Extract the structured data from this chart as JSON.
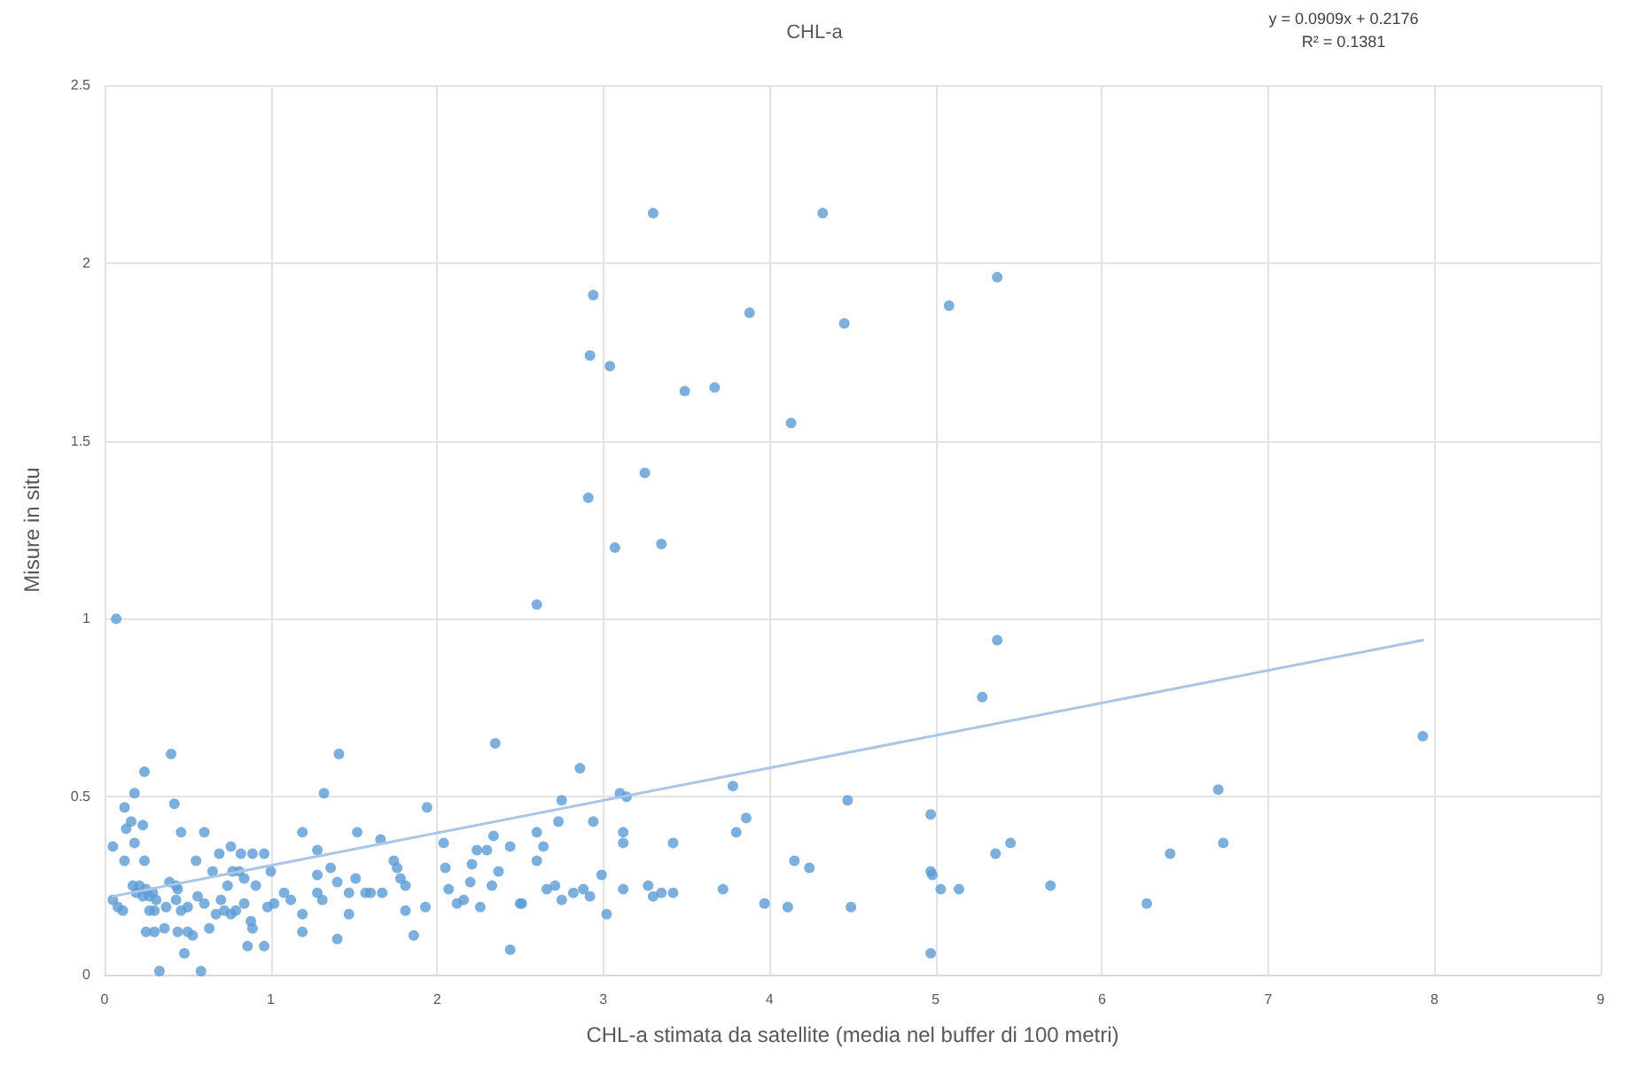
{
  "chart_data": {
    "type": "scatter",
    "title": "CHL-a",
    "xlabel": "CHL-a stimata da satellite (media nel buffer di 100 metri)",
    "ylabel": "Misure in situ",
    "annotations": [
      "y = 0.0909x + 0.2176",
      "R² = 0.1381"
    ],
    "series": [
      {
        "color": "#5b9bd5",
        "x": [
          3.3,
          2.94,
          2.92,
          3.04,
          3.49,
          3.67,
          3.88,
          4.13,
          3.25,
          2.91,
          4.32,
          4.45,
          5.08,
          5.37,
          3.07,
          3.35,
          2.6,
          0.07,
          5.37,
          5.28,
          2.86,
          3.78,
          2.75,
          4.47,
          3.1,
          3.14,
          4.97,
          2.73,
          2.94,
          3.86,
          3.8,
          2.6,
          2.64,
          3.12,
          3.12,
          3.42,
          2.6,
          4.15,
          4.24,
          5.36,
          5.45,
          2.99,
          4.97,
          4.98,
          2.66,
          2.71,
          2.75,
          2.82,
          2.88,
          2.92,
          3.12,
          3.27,
          3.3,
          3.35,
          3.42,
          3.72,
          3.02,
          2.51,
          3.97,
          4.11,
          4.49,
          5.03,
          5.14,
          5.69,
          4.97,
          7.93,
          6.7,
          6.73,
          6.41,
          6.27,
          0.4,
          1.41,
          2.35,
          0.24,
          1.32,
          0.18,
          1.94,
          0.42,
          0.12,
          0.16,
          0.13,
          0.23,
          0.05,
          0.12,
          0.18,
          0.24,
          0.46,
          0.6,
          1.19,
          1.52,
          1.66,
          2.04,
          2.05,
          2.07,
          1.28,
          0.55,
          0.69,
          0.76,
          0.82,
          0.89,
          0.96,
          0.65,
          0.77,
          1.0,
          0.91,
          1.08,
          1.12,
          1.19,
          1.28,
          1.28,
          1.31,
          1.36,
          1.4,
          1.47,
          1.51,
          1.47,
          1.4,
          1.57,
          1.6,
          1.67,
          1.74,
          1.76,
          1.78,
          1.81,
          1.81,
          1.93,
          1.86,
          2.12,
          2.16,
          2.2,
          2.21,
          2.24,
          2.3,
          2.34,
          2.33,
          2.37,
          2.44,
          2.26,
          2.44,
          2.5,
          0.05,
          0.08,
          0.11,
          0.17,
          0.19,
          0.21,
          0.23,
          0.25,
          0.27,
          0.29,
          0.31,
          0.27,
          0.3,
          0.37,
          0.25,
          0.3,
          0.36,
          0.33,
          0.58,
          0.39,
          0.43,
          0.44,
          0.43,
          0.46,
          0.5,
          0.44,
          0.5,
          0.53,
          0.48,
          0.56,
          0.6,
          0.63,
          0.67,
          0.7,
          0.72,
          0.76,
          0.74,
          0.79,
          0.84,
          0.88,
          0.89,
          0.86,
          0.96,
          0.81,
          0.84,
          0.98,
          1.02,
          1.19
        ],
        "values": [
          2.14,
          1.91,
          1.74,
          1.71,
          1.64,
          1.65,
          1.86,
          1.55,
          1.41,
          1.34,
          2.14,
          1.83,
          1.88,
          1.96,
          1.2,
          1.21,
          1.04,
          1.0,
          0.94,
          0.78,
          0.58,
          0.53,
          0.49,
          0.49,
          0.51,
          0.5,
          0.45,
          0.43,
          0.43,
          0.44,
          0.4,
          0.4,
          0.36,
          0.4,
          0.37,
          0.37,
          0.32,
          0.32,
          0.3,
          0.34,
          0.37,
          0.28,
          0.29,
          0.28,
          0.24,
          0.25,
          0.21,
          0.23,
          0.24,
          0.22,
          0.24,
          0.25,
          0.22,
          0.23,
          0.23,
          0.24,
          0.17,
          0.2,
          0.2,
          0.19,
          0.19,
          0.24,
          0.24,
          0.25,
          0.06,
          0.67,
          0.52,
          0.37,
          0.34,
          0.2,
          0.62,
          0.62,
          0.65,
          0.57,
          0.51,
          0.51,
          0.47,
          0.48,
          0.47,
          0.43,
          0.41,
          0.42,
          0.36,
          0.32,
          0.37,
          0.32,
          0.4,
          0.4,
          0.4,
          0.4,
          0.38,
          0.37,
          0.3,
          0.24,
          0.35,
          0.32,
          0.34,
          0.36,
          0.34,
          0.34,
          0.34,
          0.29,
          0.29,
          0.29,
          0.25,
          0.23,
          0.21,
          0.17,
          0.28,
          0.23,
          0.21,
          0.3,
          0.26,
          0.23,
          0.27,
          0.17,
          0.1,
          0.23,
          0.23,
          0.23,
          0.32,
          0.3,
          0.27,
          0.25,
          0.18,
          0.19,
          0.11,
          0.2,
          0.21,
          0.26,
          0.31,
          0.35,
          0.35,
          0.39,
          0.25,
          0.29,
          0.36,
          0.19,
          0.07,
          0.2,
          0.21,
          0.19,
          0.18,
          0.25,
          0.23,
          0.25,
          0.22,
          0.24,
          0.22,
          0.23,
          0.21,
          0.18,
          0.18,
          0.19,
          0.12,
          0.12,
          0.13,
          0.01,
          0.01,
          0.26,
          0.25,
          0.24,
          0.21,
          0.18,
          0.19,
          0.12,
          0.12,
          0.11,
          0.06,
          0.22,
          0.2,
          0.13,
          0.17,
          0.21,
          0.18,
          0.17,
          0.25,
          0.18,
          0.2,
          0.15,
          0.13,
          0.08,
          0.08,
          0.29,
          0.27,
          0.19,
          0.2,
          0.12
        ]
      },
      {
        "type": "line",
        "color": "#a9c6e8",
        "marker": "none",
        "x": [
          0.05,
          7.93
        ],
        "values": [
          0.22,
          0.94
        ]
      }
    ],
    "xlim": [
      0,
      9
    ],
    "xticks": [
      0,
      1,
      2,
      3,
      4,
      5,
      6,
      7,
      8,
      9
    ],
    "ylim": [
      0,
      2.5
    ],
    "yticks": [
      0,
      0.5,
      1,
      1.5,
      2,
      2.5
    ],
    "grid": true,
    "marker": "circle"
  }
}
